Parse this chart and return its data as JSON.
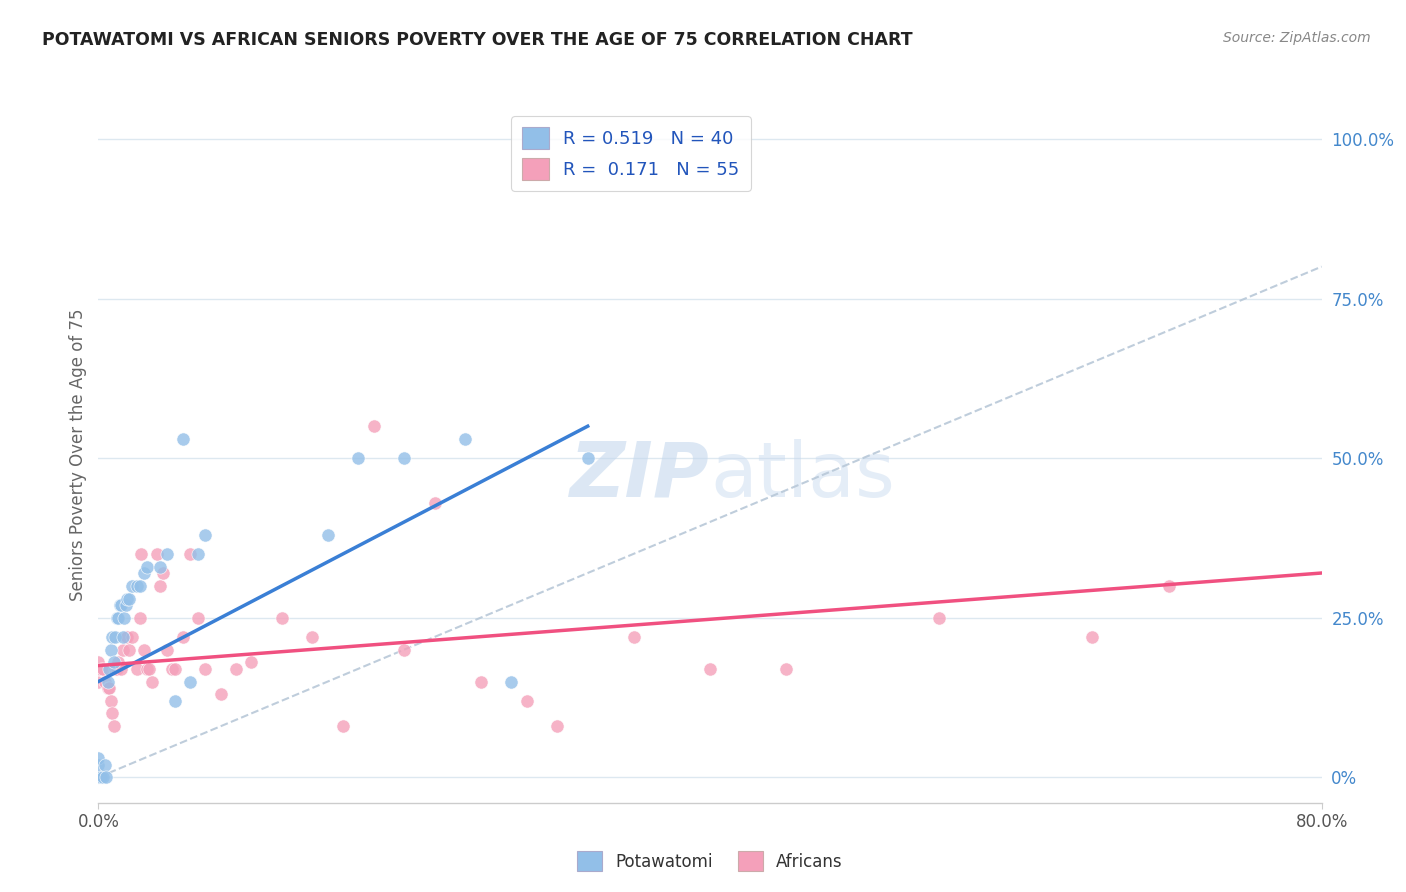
{
  "title": "POTAWATOMI VS AFRICAN SENIORS POVERTY OVER THE AGE OF 75 CORRELATION CHART",
  "source": "Source: ZipAtlas.com",
  "ylabel": "Seniors Poverty Over the Age of 75",
  "watermark": "ZIPatlas",
  "potawatomi_color": "#92bfe8",
  "africans_color": "#f4a0ba",
  "potawatomi_trend_color": "#3a7fd5",
  "africans_trend_color": "#f05080",
  "diagonal_color": "#b8c8d8",
  "background_color": "#ffffff",
  "grid_color": "#dde8f0",
  "potawatomi_label": "Potawatomi",
  "africans_label": "Africans",
  "R_potawatomi": 0.519,
  "N_potawatomi": 40,
  "R_africans": 0.171,
  "N_africans": 55,
  "xmin": 0.0,
  "xmax": 0.8,
  "ymin": -0.04,
  "ymax": 1.05,
  "potawatomi_x": [
    0.0,
    0.0,
    0.0,
    0.002,
    0.003,
    0.004,
    0.005,
    0.006,
    0.007,
    0.008,
    0.009,
    0.01,
    0.011,
    0.012,
    0.013,
    0.014,
    0.015,
    0.016,
    0.017,
    0.018,
    0.019,
    0.02,
    0.022,
    0.025,
    0.027,
    0.03,
    0.032,
    0.04,
    0.045,
    0.05,
    0.055,
    0.06,
    0.065,
    0.07,
    0.15,
    0.17,
    0.2,
    0.24,
    0.27,
    0.32
  ],
  "potawatomi_y": [
    0.0,
    0.02,
    0.03,
    0.0,
    0.0,
    0.02,
    0.0,
    0.15,
    0.17,
    0.2,
    0.22,
    0.18,
    0.22,
    0.25,
    0.25,
    0.27,
    0.27,
    0.22,
    0.25,
    0.27,
    0.28,
    0.28,
    0.3,
    0.3,
    0.3,
    0.32,
    0.33,
    0.33,
    0.35,
    0.12,
    0.53,
    0.15,
    0.35,
    0.38,
    0.38,
    0.5,
    0.5,
    0.53,
    0.15,
    0.5
  ],
  "africans_x": [
    0.0,
    0.0,
    0.0,
    0.002,
    0.003,
    0.004,
    0.006,
    0.007,
    0.008,
    0.009,
    0.01,
    0.011,
    0.012,
    0.013,
    0.015,
    0.016,
    0.018,
    0.019,
    0.02,
    0.022,
    0.025,
    0.027,
    0.028,
    0.03,
    0.032,
    0.033,
    0.035,
    0.038,
    0.04,
    0.042,
    0.045,
    0.048,
    0.05,
    0.055,
    0.06,
    0.065,
    0.07,
    0.08,
    0.09,
    0.1,
    0.12,
    0.14,
    0.16,
    0.18,
    0.2,
    0.22,
    0.25,
    0.28,
    0.3,
    0.35,
    0.4,
    0.45,
    0.55,
    0.65,
    0.7
  ],
  "africans_y": [
    0.15,
    0.17,
    0.18,
    0.17,
    0.17,
    0.15,
    0.14,
    0.14,
    0.12,
    0.1,
    0.08,
    0.17,
    0.17,
    0.18,
    0.17,
    0.2,
    0.22,
    0.22,
    0.2,
    0.22,
    0.17,
    0.25,
    0.35,
    0.2,
    0.17,
    0.17,
    0.15,
    0.35,
    0.3,
    0.32,
    0.2,
    0.17,
    0.17,
    0.22,
    0.35,
    0.25,
    0.17,
    0.13,
    0.17,
    0.18,
    0.25,
    0.22,
    0.08,
    0.55,
    0.2,
    0.43,
    0.15,
    0.12,
    0.08,
    0.22,
    0.17,
    0.17,
    0.25,
    0.22,
    0.3
  ],
  "pot_trend_x0": 0.0,
  "pot_trend_y0": 0.15,
  "pot_trend_x1": 0.32,
  "pot_trend_y1": 0.55,
  "afr_trend_x0": 0.0,
  "afr_trend_y0": 0.175,
  "afr_trend_x1": 0.8,
  "afr_trend_y1": 0.32
}
